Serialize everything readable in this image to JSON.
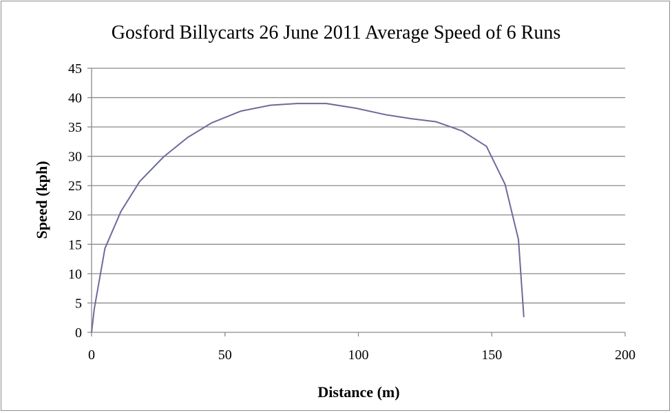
{
  "chart_data": {
    "type": "line",
    "title": "Gosford Billycarts 26 June 2011 Average Speed of 6 Runs",
    "xlabel": "Distance (m)",
    "ylabel": "Speed (kph)",
    "xlim": [
      0,
      200
    ],
    "ylim": [
      0,
      45
    ],
    "xticks": [
      0,
      50,
      100,
      150,
      200
    ],
    "yticks": [
      0,
      5,
      10,
      15,
      20,
      25,
      30,
      35,
      40,
      45
    ],
    "grid": "horizontal",
    "legend": "none",
    "line_color": "#6b6b9b",
    "series": [
      {
        "x": [
          0,
          1,
          5,
          11,
          18,
          27,
          36,
          45,
          56,
          67,
          77,
          88,
          99,
          110,
          120,
          129,
          139,
          148,
          155,
          160,
          162
        ],
        "y": [
          0,
          4,
          14.3,
          20.6,
          25.7,
          29.9,
          33.2,
          35.7,
          37.7,
          38.7,
          39.0,
          39.0,
          38.2,
          37.1,
          36.4,
          35.9,
          34.3,
          31.7,
          25.2,
          15.8,
          2.6
        ]
      }
    ]
  }
}
